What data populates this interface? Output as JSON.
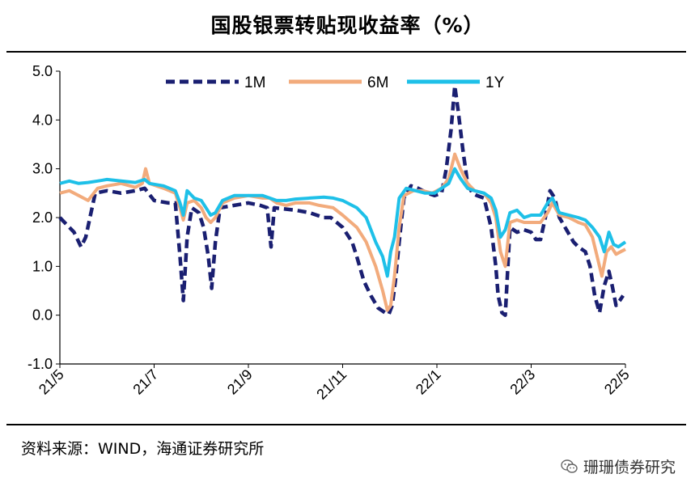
{
  "header": {
    "title": "国股银票转贴现收益率（%）"
  },
  "footer": {
    "source": "资料来源：WIND，海通证券研究所",
    "watermark": "珊珊债券研究",
    "watermark_icon": "wechat-icon"
  },
  "chart_data": {
    "type": "line",
    "title": "国股银票转贴现收益率（%）",
    "xlabel": "",
    "ylabel": "",
    "ylim": [
      -1.0,
      5.0
    ],
    "yticks": [
      "5.0",
      "4.0",
      "3.0",
      "2.0",
      "1.0",
      "0.0",
      "-1.0"
    ],
    "xticks": [
      "21/5",
      "21/7",
      "21/9",
      "21/11",
      "22/1",
      "22/3",
      "22/5"
    ],
    "x_index_range": [
      0,
      12
    ],
    "legend": {
      "position": "top",
      "entries": [
        "1M",
        "6M",
        "1Y"
      ]
    },
    "grid": false,
    "series": [
      {
        "name": "1M",
        "color": "#1a1f71",
        "style": "dashed",
        "points": [
          [
            0,
            2.0
          ],
          [
            0.15,
            1.85
          ],
          [
            0.3,
            1.7
          ],
          [
            0.45,
            1.4
          ],
          [
            0.55,
            1.6
          ],
          [
            0.75,
            2.5
          ],
          [
            1.0,
            2.55
          ],
          [
            1.3,
            2.5
          ],
          [
            1.6,
            2.55
          ],
          [
            1.8,
            2.6
          ],
          [
            2.0,
            2.35
          ],
          [
            2.3,
            2.3
          ],
          [
            2.45,
            2.3
          ],
          [
            2.55,
            1.2
          ],
          [
            2.62,
            0.3
          ],
          [
            2.7,
            1.6
          ],
          [
            2.8,
            2.2
          ],
          [
            2.95,
            2.1
          ],
          [
            3.05,
            1.8
          ],
          [
            3.15,
            1.2
          ],
          [
            3.22,
            0.55
          ],
          [
            3.3,
            1.5
          ],
          [
            3.4,
            2.2
          ],
          [
            3.7,
            2.25
          ],
          [
            4.0,
            2.3
          ],
          [
            4.25,
            2.25
          ],
          [
            4.4,
            2.2
          ],
          [
            4.48,
            1.4
          ],
          [
            4.55,
            2.2
          ],
          [
            5.0,
            2.15
          ],
          [
            5.3,
            2.1
          ],
          [
            5.6,
            2.0
          ],
          [
            5.75,
            2.0
          ],
          [
            6.0,
            1.8
          ],
          [
            6.2,
            1.5
          ],
          [
            6.3,
            1.2
          ],
          [
            6.45,
            0.7
          ],
          [
            6.6,
            0.4
          ],
          [
            6.75,
            0.15
          ],
          [
            6.9,
            0.05
          ],
          [
            6.98,
            0.02
          ],
          [
            7.05,
            0.2
          ],
          [
            7.12,
            0.7
          ],
          [
            7.2,
            1.5
          ],
          [
            7.3,
            2.4
          ],
          [
            7.45,
            2.65
          ],
          [
            7.6,
            2.6
          ],
          [
            7.8,
            2.5
          ],
          [
            7.95,
            2.45
          ],
          [
            8.1,
            2.5
          ],
          [
            8.2,
            3.0
          ],
          [
            8.3,
            3.8
          ],
          [
            8.38,
            4.7
          ],
          [
            8.45,
            4.2
          ],
          [
            8.55,
            3.4
          ],
          [
            8.65,
            2.7
          ],
          [
            8.75,
            2.5
          ],
          [
            8.85,
            2.45
          ],
          [
            9.0,
            2.4
          ],
          [
            9.15,
            1.8
          ],
          [
            9.25,
            1.0
          ],
          [
            9.3,
            0.4
          ],
          [
            9.38,
            0.05
          ],
          [
            9.45,
            0.0
          ],
          [
            9.55,
            1.8
          ],
          [
            9.7,
            1.7
          ],
          [
            9.85,
            1.75
          ],
          [
            10.0,
            1.7
          ],
          [
            10.1,
            1.55
          ],
          [
            10.2,
            1.55
          ],
          [
            10.3,
            2.0
          ],
          [
            10.4,
            2.55
          ],
          [
            10.5,
            2.4
          ],
          [
            10.6,
            2.0
          ],
          [
            10.75,
            1.75
          ],
          [
            10.9,
            1.5
          ],
          [
            11.0,
            1.4
          ],
          [
            11.15,
            1.3
          ],
          [
            11.25,
            1.0
          ],
          [
            11.35,
            0.4
          ],
          [
            11.45,
            0.05
          ],
          [
            11.55,
            0.6
          ],
          [
            11.65,
            0.9
          ],
          [
            11.72,
            0.6
          ],
          [
            11.8,
            0.2
          ],
          [
            11.88,
            0.3
          ],
          [
            11.95,
            0.4
          ]
        ]
      },
      {
        "name": "6M",
        "color": "#f2ab7c",
        "style": "solid",
        "points": [
          [
            0,
            2.5
          ],
          [
            0.2,
            2.55
          ],
          [
            0.4,
            2.45
          ],
          [
            0.6,
            2.35
          ],
          [
            0.8,
            2.6
          ],
          [
            1.0,
            2.65
          ],
          [
            1.3,
            2.7
          ],
          [
            1.6,
            2.62
          ],
          [
            1.75,
            2.7
          ],
          [
            1.82,
            3.0
          ],
          [
            1.9,
            2.7
          ],
          [
            2.2,
            2.6
          ],
          [
            2.45,
            2.5
          ],
          [
            2.55,
            2.2
          ],
          [
            2.62,
            1.95
          ],
          [
            2.7,
            2.3
          ],
          [
            2.85,
            2.35
          ],
          [
            3.0,
            2.2
          ],
          [
            3.1,
            2.0
          ],
          [
            3.2,
            1.9
          ],
          [
            3.3,
            2.0
          ],
          [
            3.45,
            2.3
          ],
          [
            3.7,
            2.4
          ],
          [
            4.0,
            2.45
          ],
          [
            4.3,
            2.4
          ],
          [
            4.45,
            2.4
          ],
          [
            4.6,
            2.3
          ],
          [
            4.8,
            2.25
          ],
          [
            5.0,
            2.3
          ],
          [
            5.3,
            2.3
          ],
          [
            5.5,
            2.25
          ],
          [
            5.8,
            2.2
          ],
          [
            6.0,
            2.05
          ],
          [
            6.3,
            1.8
          ],
          [
            6.5,
            1.5
          ],
          [
            6.7,
            1.0
          ],
          [
            6.85,
            0.5
          ],
          [
            6.95,
            0.1
          ],
          [
            7.02,
            0.2
          ],
          [
            7.1,
            0.8
          ],
          [
            7.2,
            1.8
          ],
          [
            7.3,
            2.45
          ],
          [
            7.5,
            2.55
          ],
          [
            7.7,
            2.55
          ],
          [
            7.9,
            2.5
          ],
          [
            8.1,
            2.6
          ],
          [
            8.25,
            2.8
          ],
          [
            8.38,
            3.3
          ],
          [
            8.5,
            3.0
          ],
          [
            8.65,
            2.7
          ],
          [
            8.8,
            2.55
          ],
          [
            9.0,
            2.5
          ],
          [
            9.15,
            2.3
          ],
          [
            9.25,
            2.0
          ],
          [
            9.35,
            1.3
          ],
          [
            9.45,
            1.0
          ],
          [
            9.55,
            1.9
          ],
          [
            9.7,
            1.95
          ],
          [
            9.85,
            1.9
          ],
          [
            10.0,
            1.9
          ],
          [
            10.2,
            1.9
          ],
          [
            10.35,
            2.1
          ],
          [
            10.45,
            2.3
          ],
          [
            10.6,
            2.05
          ],
          [
            10.8,
            2.0
          ],
          [
            11.0,
            1.9
          ],
          [
            11.15,
            1.85
          ],
          [
            11.3,
            1.6
          ],
          [
            11.4,
            1.2
          ],
          [
            11.5,
            0.8
          ],
          [
            11.6,
            1.3
          ],
          [
            11.7,
            1.4
          ],
          [
            11.8,
            1.25
          ],
          [
            11.9,
            1.3
          ],
          [
            12.0,
            1.35
          ]
        ]
      },
      {
        "name": "1Y",
        "color": "#1ec0e8",
        "style": "solid",
        "points": [
          [
            0,
            2.7
          ],
          [
            0.2,
            2.75
          ],
          [
            0.4,
            2.7
          ],
          [
            0.6,
            2.72
          ],
          [
            0.8,
            2.75
          ],
          [
            1.0,
            2.78
          ],
          [
            1.3,
            2.75
          ],
          [
            1.6,
            2.72
          ],
          [
            1.8,
            2.78
          ],
          [
            1.9,
            2.7
          ],
          [
            2.2,
            2.65
          ],
          [
            2.45,
            2.55
          ],
          [
            2.55,
            2.3
          ],
          [
            2.62,
            2.05
          ],
          [
            2.7,
            2.55
          ],
          [
            2.85,
            2.4
          ],
          [
            3.0,
            2.35
          ],
          [
            3.1,
            2.2
          ],
          [
            3.2,
            2.05
          ],
          [
            3.3,
            2.1
          ],
          [
            3.45,
            2.35
          ],
          [
            3.7,
            2.45
          ],
          [
            4.0,
            2.45
          ],
          [
            4.3,
            2.45
          ],
          [
            4.6,
            2.35
          ],
          [
            4.8,
            2.35
          ],
          [
            5.0,
            2.38
          ],
          [
            5.3,
            2.4
          ],
          [
            5.6,
            2.42
          ],
          [
            5.8,
            2.4
          ],
          [
            6.0,
            2.35
          ],
          [
            6.3,
            2.2
          ],
          [
            6.5,
            2.0
          ],
          [
            6.7,
            1.5
          ],
          [
            6.85,
            1.2
          ],
          [
            6.95,
            0.8
          ],
          [
            7.02,
            1.3
          ],
          [
            7.1,
            1.6
          ],
          [
            7.2,
            2.4
          ],
          [
            7.35,
            2.6
          ],
          [
            7.55,
            2.55
          ],
          [
            7.75,
            2.5
          ],
          [
            7.95,
            2.5
          ],
          [
            8.1,
            2.6
          ],
          [
            8.25,
            2.7
          ],
          [
            8.38,
            3.0
          ],
          [
            8.5,
            2.8
          ],
          [
            8.65,
            2.6
          ],
          [
            8.8,
            2.55
          ],
          [
            9.0,
            2.5
          ],
          [
            9.15,
            2.4
          ],
          [
            9.25,
            2.15
          ],
          [
            9.35,
            1.6
          ],
          [
            9.45,
            1.75
          ],
          [
            9.55,
            2.1
          ],
          [
            9.7,
            2.15
          ],
          [
            9.85,
            2.0
          ],
          [
            10.0,
            2.05
          ],
          [
            10.2,
            2.05
          ],
          [
            10.35,
            2.3
          ],
          [
            10.45,
            2.4
          ],
          [
            10.6,
            2.1
          ],
          [
            10.8,
            2.05
          ],
          [
            11.0,
            2.0
          ],
          [
            11.15,
            1.95
          ],
          [
            11.3,
            1.8
          ],
          [
            11.45,
            1.6
          ],
          [
            11.55,
            1.3
          ],
          [
            11.65,
            1.7
          ],
          [
            11.75,
            1.45
          ],
          [
            11.85,
            1.4
          ],
          [
            12.0,
            1.5
          ]
        ]
      }
    ]
  }
}
